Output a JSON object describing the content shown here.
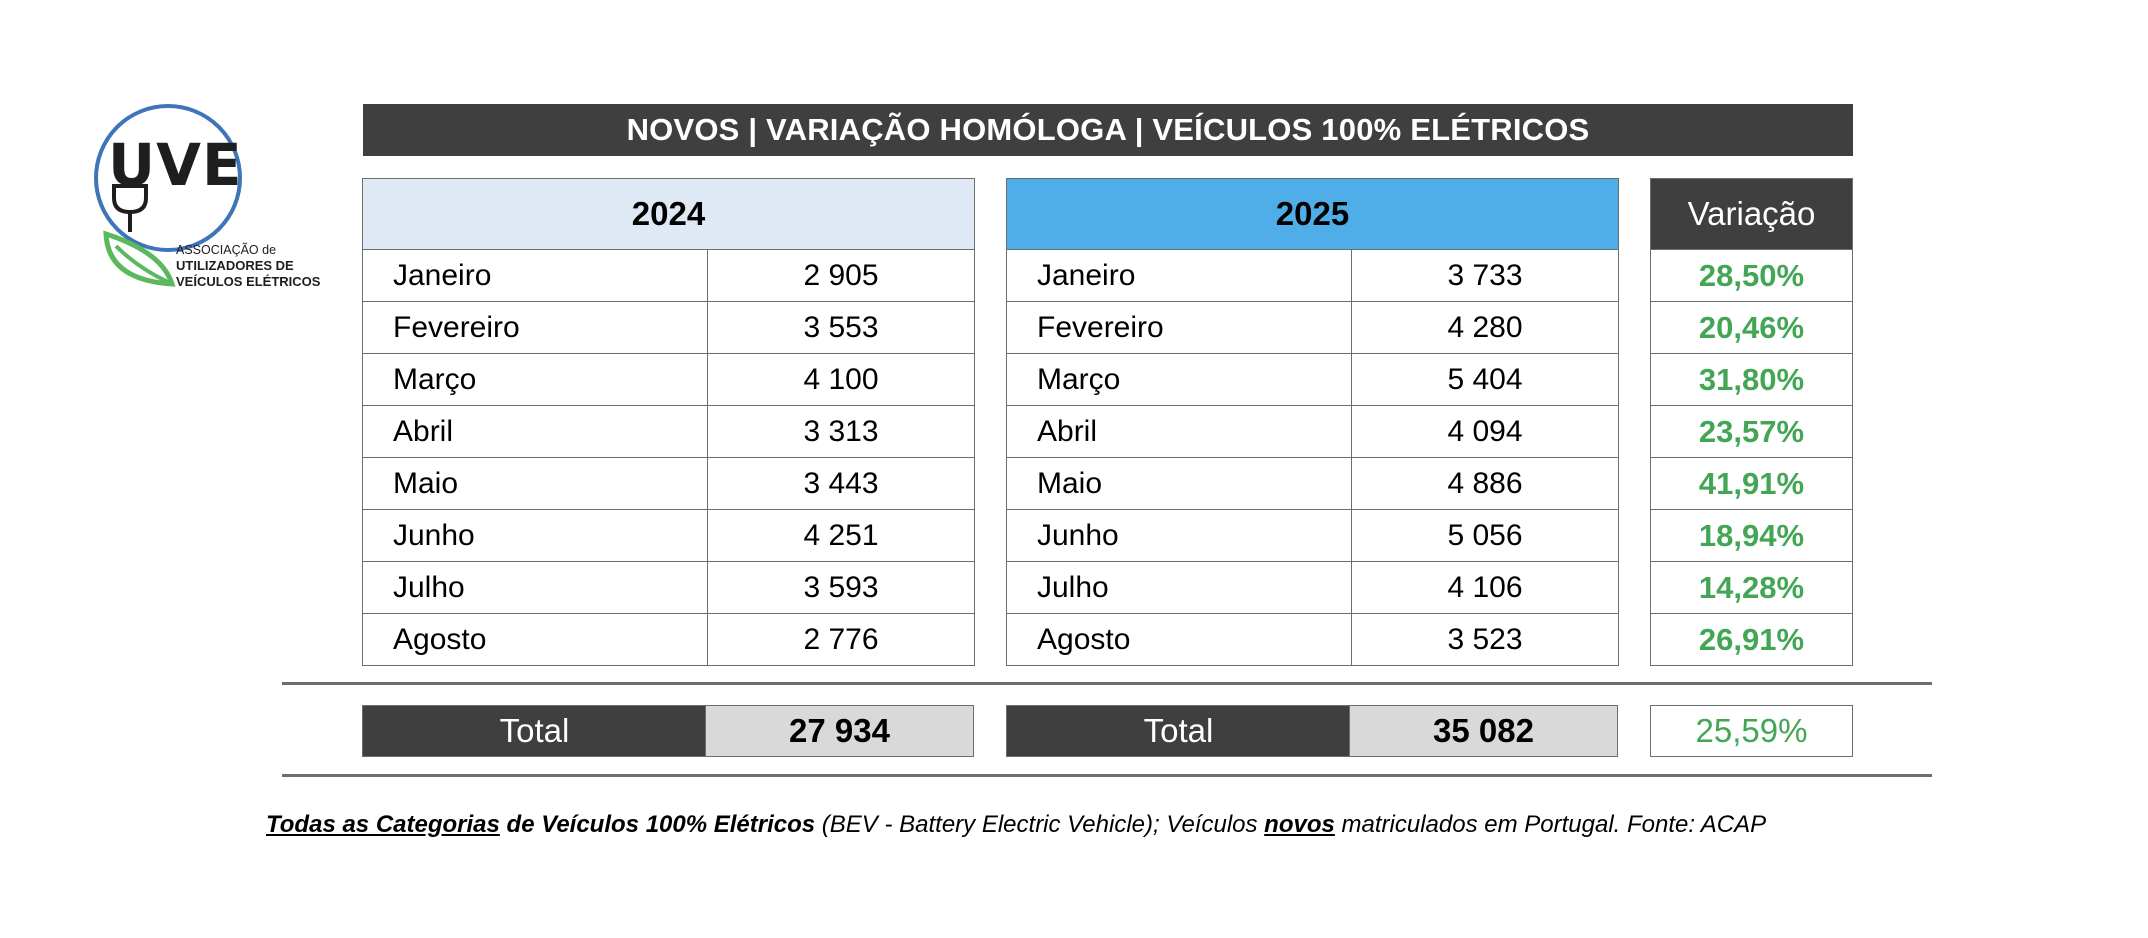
{
  "logo": {
    "text": "UVE",
    "assoc_line1": "ASSOCIAÇÃO de",
    "assoc_line2": "UTILIZADORES DE",
    "assoc_line3": "VEÍCULOS ELÉTRICOS",
    "colors": {
      "ring": "#3e74b8",
      "leaf": "#5cb85c",
      "text": "#1e1e1e"
    }
  },
  "title": "NOVOS | VARIAÇÃO HOMÓLOGA | VEÍCULOS 100% ELÉTRICOS",
  "table_2024": {
    "header": "2024",
    "rows": [
      {
        "month": "Janeiro",
        "value": "2 905"
      },
      {
        "month": "Fevereiro",
        "value": "3 553"
      },
      {
        "month": "Março",
        "value": "4 100"
      },
      {
        "month": "Abril",
        "value": "3 313"
      },
      {
        "month": "Maio",
        "value": "3 443"
      },
      {
        "month": "Junho",
        "value": "4 251"
      },
      {
        "month": "Julho",
        "value": "3 593"
      },
      {
        "month": "Agosto",
        "value": "2 776"
      }
    ],
    "total_label": "Total",
    "total_value": "27 934"
  },
  "table_2025": {
    "header": "2025",
    "rows": [
      {
        "month": "Janeiro",
        "value": "3 733"
      },
      {
        "month": "Fevereiro",
        "value": "4 280"
      },
      {
        "month": "Março",
        "value": "5 404"
      },
      {
        "month": "Abril",
        "value": "4 094"
      },
      {
        "month": "Maio",
        "value": "4 886"
      },
      {
        "month": "Junho",
        "value": "5 056"
      },
      {
        "month": "Julho",
        "value": "4 106"
      },
      {
        "month": "Agosto",
        "value": "3 523"
      }
    ],
    "total_label": "Total",
    "total_value": "35 082"
  },
  "variation": {
    "header": "Variação",
    "values": [
      "28,50%",
      "20,46%",
      "31,80%",
      "23,57%",
      "41,91%",
      "18,94%",
      "14,28%",
      "26,91%"
    ],
    "total": "25,59%"
  },
  "footnote": {
    "part1": "Todas as Categorias",
    "part2": " de Veículos 100% Elétricos",
    "part3": " (BEV - Battery Electric Vehicle); Veículos ",
    "part4": "novos",
    "part5": " matriculados em Portugal. Fonte: ACAP"
  },
  "colors": {
    "dark": "#3f3f3f",
    "header_2024": "#dfe9f5",
    "header_2025": "#4faee8",
    "positive": "#43a655",
    "total_bg": "#d9d9d9"
  }
}
